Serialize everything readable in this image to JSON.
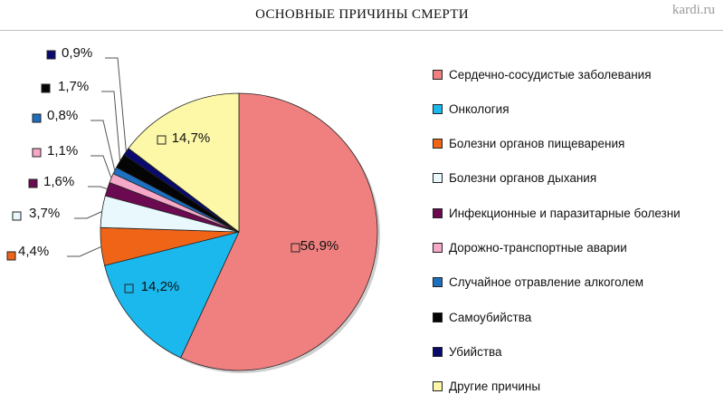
{
  "header": {
    "title": "ОСНОВНЫЕ ПРИЧИНЫ СМЕРТИ",
    "watermark": "kardi.ru"
  },
  "chart_data": {
    "type": "pie",
    "title": "ОСНОВНЫЕ ПРИЧИНЫ СМЕРТИ",
    "legend_position": "right",
    "slices": [
      {
        "name": "Сердечно-сосудистые заболевания",
        "value": 56.9,
        "label": "56,9%",
        "color": "#F08080"
      },
      {
        "name": "Онкология",
        "value": 14.2,
        "label": "14,2%",
        "color": "#1BB8EE"
      },
      {
        "name": "Болезни органов пищеварения",
        "value": 4.4,
        "label": "4,4%",
        "color": "#F06418"
      },
      {
        "name": "Болезни органов дыхания",
        "value": 3.7,
        "label": "3,7%",
        "color": "#E8F8FC"
      },
      {
        "name": "Инфекционные и паразитарные болезни",
        "value": 1.6,
        "label": "1,6%",
        "color": "#6B0A50"
      },
      {
        "name": "Дорожно-транспортные аварии",
        "value": 1.1,
        "label": "1,1%",
        "color": "#F5A8C8"
      },
      {
        "name": "Случайное отравление алкоголем",
        "value": 0.8,
        "label": "0,8%",
        "color": "#1E6FC0"
      },
      {
        "name": "Самоубийства",
        "value": 1.7,
        "label": "1,7%",
        "color": "#050505"
      },
      {
        "name": "Убийства",
        "value": 0.9,
        "label": "0,9%",
        "color": "#0A0A6E"
      },
      {
        "name": "Другие причины",
        "value": 14.7,
        "label": "14,7%",
        "color": "#FCF8A8"
      }
    ]
  }
}
